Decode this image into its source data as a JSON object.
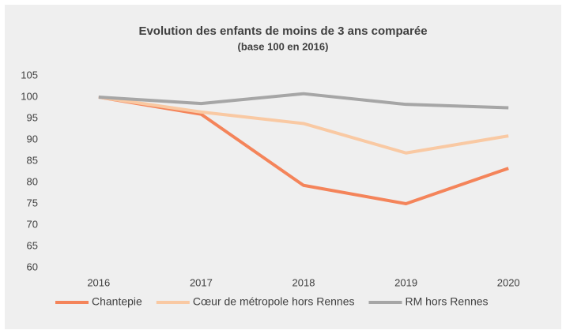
{
  "chart_data": {
    "type": "line",
    "title": "Evolution des enfants de moins de 3 ans comparée",
    "subtitle": "(base 100 en 2016)",
    "categories": [
      "2016",
      "2017",
      "2018",
      "2019",
      "2020"
    ],
    "series": [
      {
        "name": "Chantepie",
        "color": "#f4845a",
        "values": [
          100,
          96,
          79.3,
          75,
          83.3
        ]
      },
      {
        "name": "Cœur de métropole hors Rennes",
        "color": "#f9c9a3",
        "values": [
          100,
          96.5,
          93.8,
          86.9,
          90.9
        ]
      },
      {
        "name": "RM hors Rennes",
        "color": "#a6a6a6",
        "values": [
          100,
          98.5,
          100.8,
          98.3,
          97.5
        ]
      }
    ],
    "ylim": [
      60,
      105
    ],
    "yticks": [
      60,
      65,
      70,
      75,
      80,
      85,
      90,
      95,
      100,
      105
    ],
    "grid": false,
    "legend": "bottom"
  }
}
